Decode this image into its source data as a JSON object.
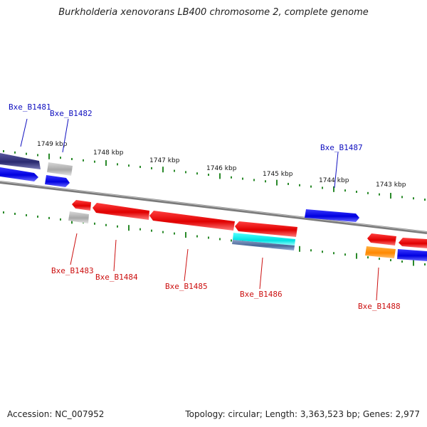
{
  "title": "Burkholderia xenovorans LB400 chromosome 2, complete genome",
  "footer": {
    "accession": "Accession: NC_007952",
    "summary": "Topology: circular; Length: 3,363,523 bp; Genes: 2,977"
  },
  "colors": {
    "label_forward": "#1010c0",
    "label_reverse": "#cc1010",
    "tick": "#2a8a2a",
    "backbone": "#888888"
  },
  "scale_labels": [
    "1749 kbp",
    "1748 kbp",
    "1747 kbp",
    "1746 kbp",
    "1745 kbp",
    "1744 kbp",
    "1743 kbp"
  ],
  "gene_labels": {
    "b1481": "Bxe_B1481",
    "b1482": "Bxe_B1482",
    "b1483": "Bxe_B1483",
    "b1484": "Bxe_B1484",
    "b1485": "Bxe_B1485",
    "b1486": "Bxe_B1486",
    "b1487": "Bxe_B1487",
    "b1488": "Bxe_B1488"
  }
}
